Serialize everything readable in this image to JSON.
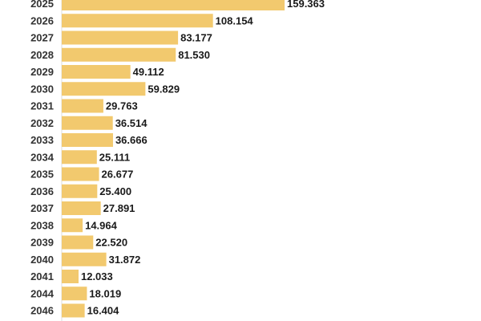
{
  "chart_data": {
    "type": "bar",
    "orientation": "horizontal",
    "categories": [
      "2025",
      "2026",
      "2027",
      "2028",
      "2029",
      "2030",
      "2031",
      "2032",
      "2033",
      "2034",
      "2035",
      "2036",
      "2037",
      "2038",
      "2039",
      "2040",
      "2041",
      "2044",
      "2046"
    ],
    "values": [
      159363,
      108154,
      83177,
      81530,
      49112,
      59829,
      29763,
      36514,
      36666,
      25111,
      26677,
      25400,
      27891,
      14964,
      22520,
      31872,
      12033,
      18019,
      16404
    ],
    "value_labels": [
      "159.363",
      "108.154",
      "83.177",
      "81.530",
      "49.112",
      "59.829",
      "29.763",
      "36.514",
      "36.666",
      "25.111",
      "26.677",
      "25.400",
      "27.891",
      "14.964",
      "22.520",
      "31.872",
      "12.033",
      "18.019",
      "16.404"
    ],
    "bar_color": "#f2c96e",
    "grid": false,
    "legend": "none"
  }
}
